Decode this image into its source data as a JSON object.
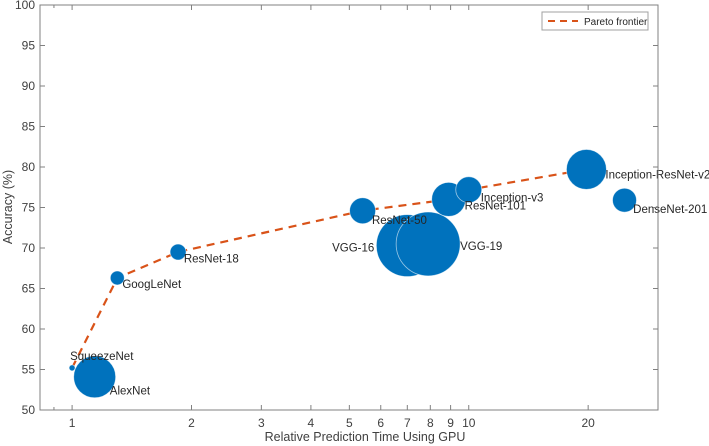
{
  "chart_data": {
    "type": "scatter",
    "title": "",
    "xlabel": "Relative Prediction Time Using GPU",
    "ylabel": "Accuracy (%)",
    "xscale": "log",
    "xlim": [
      0.83,
      30
    ],
    "ylim": [
      50,
      100
    ],
    "x_ticks": [
      1,
      2,
      3,
      4,
      5,
      6,
      7,
      8,
      9,
      10,
      20
    ],
    "x_tick_labels": [
      "1",
      "2",
      "3",
      "4",
      "5",
      "6",
      "7",
      "8",
      "9",
      "10",
      "20"
    ],
    "y_ticks": [
      50,
      55,
      60,
      65,
      70,
      75,
      80,
      85,
      90,
      95,
      100
    ],
    "y_tick_labels": [
      "50",
      "55",
      "60",
      "65",
      "70",
      "75",
      "80",
      "85",
      "90",
      "95",
      "100"
    ],
    "grid": false,
    "legend": {
      "position": "top-right",
      "entries": [
        "Pareto frontier"
      ]
    },
    "marker_size_encodes": "model size (bubble area)",
    "colors": {
      "points": "#0072BD",
      "pareto": "#D95319"
    },
    "points": [
      {
        "name": "SqueezeNet",
        "x": 1.0,
        "y": 55.2,
        "r": 3,
        "label_pos": "above-right"
      },
      {
        "name": "AlexNet",
        "x": 1.14,
        "y": 54.1,
        "r": 21,
        "label_pos": "right"
      },
      {
        "name": "GoogLeNet",
        "x": 1.3,
        "y": 66.3,
        "r": 7,
        "label_pos": "right"
      },
      {
        "name": "ResNet-18",
        "x": 1.85,
        "y": 69.5,
        "r": 8,
        "label_pos": "right"
      },
      {
        "name": "ResNet-50",
        "x": 5.4,
        "y": 74.6,
        "r": 13,
        "label_pos": "right"
      },
      {
        "name": "VGG-16",
        "x": 7.0,
        "y": 70.3,
        "r": 31,
        "label_pos": "left"
      },
      {
        "name": "VGG-19",
        "x": 7.9,
        "y": 70.5,
        "r": 32,
        "label_pos": "right"
      },
      {
        "name": "ResNet-101",
        "x": 8.9,
        "y": 76.0,
        "r": 17,
        "label_pos": "right"
      },
      {
        "name": "Inception-v3",
        "x": 10.0,
        "y": 77.2,
        "r": 13,
        "label_pos": "right"
      },
      {
        "name": "Inception-ResNet-v2",
        "x": 19.8,
        "y": 79.7,
        "r": 20,
        "label_pos": "right"
      },
      {
        "name": "DenseNet-201",
        "x": 24.7,
        "y": 75.9,
        "r": 12,
        "label_pos": "right"
      }
    ],
    "series": [
      {
        "name": "Pareto frontier",
        "style": "dashed",
        "points": [
          "SqueezeNet",
          "GoogLeNet",
          "ResNet-18",
          "ResNet-50",
          "ResNet-101",
          "Inception-v3",
          "Inception-ResNet-v2"
        ],
        "x": [
          1.0,
          1.3,
          1.85,
          5.4,
          8.9,
          10.0,
          19.8
        ],
        "y": [
          55.2,
          66.3,
          69.5,
          74.6,
          76.0,
          77.2,
          79.7
        ]
      }
    ]
  }
}
